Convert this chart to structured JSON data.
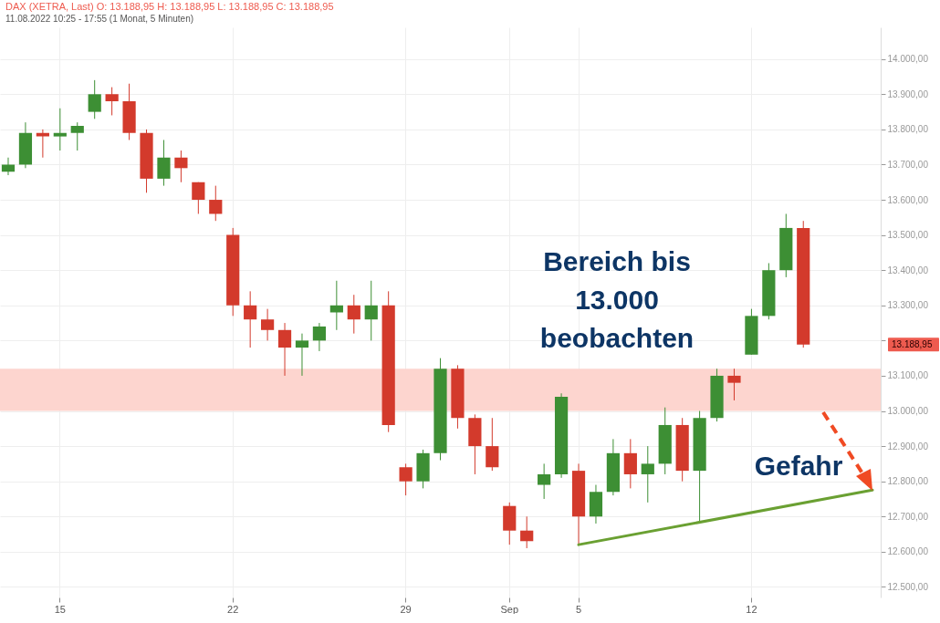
{
  "chart_data": {
    "type": "candlestick",
    "title": "DAX (XETRA, Last)  O: 13.188,95  H: 13.188,95  L: 13.188,95  C: 13.188,95",
    "subtitle": "11.08.2022 10:25 - 17:55  (1 Monat, 5 Minuten)",
    "categories": [
      null,
      null,
      null,
      "15",
      null,
      null,
      null,
      null,
      null,
      null,
      null,
      null,
      null,
      "22",
      null,
      null,
      null,
      null,
      null,
      null,
      null,
      null,
      null,
      "29",
      null,
      null,
      null,
      null,
      null,
      "Sep",
      null,
      null,
      null,
      "5",
      null,
      null,
      null,
      null,
      null,
      null,
      null,
      null,
      null,
      "12",
      null,
      null,
      null,
      null,
      null,
      null,
      null
    ],
    "ohlc": [
      [
        13680,
        13720,
        13670,
        13700
      ],
      [
        13700,
        13820,
        13690,
        13790
      ],
      [
        13790,
        13800,
        13720,
        13780
      ],
      [
        13780,
        13860,
        13740,
        13790
      ],
      [
        13790,
        13820,
        13740,
        13810
      ],
      [
        13850,
        13940,
        13830,
        13900
      ],
      [
        13900,
        13920,
        13840,
        13880
      ],
      [
        13880,
        13930,
        13770,
        13790
      ],
      [
        13790,
        13800,
        13620,
        13660
      ],
      [
        13660,
        13770,
        13640,
        13720
      ],
      [
        13720,
        13740,
        13650,
        13690
      ],
      [
        13650,
        13650,
        13560,
        13600
      ],
      [
        13600,
        13640,
        13540,
        13560
      ],
      [
        13500,
        13520,
        13270,
        13300
      ],
      [
        13300,
        13340,
        13180,
        13260
      ],
      [
        13260,
        13290,
        13200,
        13230
      ],
      [
        13230,
        13250,
        13100,
        13180
      ],
      [
        13180,
        13220,
        13100,
        13200
      ],
      [
        13200,
        13250,
        13170,
        13240
      ],
      [
        13280,
        13370,
        13230,
        13300
      ],
      [
        13300,
        13330,
        13220,
        13260
      ],
      [
        13260,
        13370,
        13200,
        13300
      ],
      [
        13300,
        13340,
        12940,
        12960
      ],
      [
        12840,
        12850,
        12760,
        12800
      ],
      [
        12800,
        12890,
        12780,
        12880
      ],
      [
        12880,
        13150,
        12860,
        13120
      ],
      [
        13120,
        13130,
        12950,
        12980
      ],
      [
        12980,
        12990,
        12820,
        12900
      ],
      [
        12900,
        12980,
        12830,
        12840
      ],
      [
        12730,
        12740,
        12620,
        12660
      ],
      [
        12660,
        12700,
        12610,
        12630
      ],
      [
        12790,
        12850,
        12750,
        12820
      ],
      [
        12820,
        13050,
        12810,
        13040
      ],
      [
        12830,
        12850,
        12620,
        12700
      ],
      [
        12700,
        12790,
        12680,
        12770
      ],
      [
        12770,
        12920,
        12760,
        12880
      ],
      [
        12880,
        12920,
        12780,
        12820
      ],
      [
        12820,
        12900,
        12740,
        12850
      ],
      [
        12850,
        13010,
        12820,
        12960
      ],
      [
        12960,
        12980,
        12800,
        12830
      ],
      [
        12830,
        13000,
        12680,
        12980
      ],
      [
        12980,
        13120,
        12970,
        13100
      ],
      [
        13100,
        13120,
        13030,
        13080
      ],
      [
        13160,
        13290,
        13160,
        13270
      ],
      [
        13270,
        13420,
        13260,
        13400
      ],
      [
        13400,
        13560,
        13380,
        13520
      ],
      [
        13520,
        13540,
        13180,
        13188.95
      ],
      null,
      null,
      null,
      null
    ],
    "series": [
      {
        "type": "line",
        "color": "#6aa032",
        "values": [
          null,
          null,
          null,
          null,
          null,
          null,
          null,
          null,
          null,
          null,
          null,
          null,
          null,
          null,
          null,
          null,
          null,
          null,
          null,
          null,
          null,
          null,
          null,
          null,
          null,
          null,
          null,
          null,
          null,
          null,
          null,
          null,
          null,
          12620,
          null,
          null,
          null,
          null,
          null,
          null,
          null,
          null,
          null,
          null,
          null,
          null,
          null,
          null,
          null,
          null,
          12775
        ]
      }
    ],
    "bands": [
      {
        "axis": "y",
        "from": 13000,
        "to": 13120,
        "color": "#fdd5cf"
      }
    ],
    "ylim": [
      12470,
      14090
    ],
    "yticks": [
      {
        "value": 12500,
        "label": "12.500,00"
      },
      {
        "value": 12600,
        "label": "12.600,00"
      },
      {
        "value": 12700,
        "label": "12.700,00"
      },
      {
        "value": 12800,
        "label": "12.800,00"
      },
      {
        "value": 12900,
        "label": "12.900,00"
      },
      {
        "value": 13000,
        "label": "13.000,00"
      },
      {
        "value": 13100,
        "label": "13.100,00"
      },
      {
        "value": 13200,
        "label": null
      },
      {
        "value": 13300,
        "label": "13.300,00"
      },
      {
        "value": 13400,
        "label": "13.400,00"
      },
      {
        "value": 13500,
        "label": "13.500,00"
      },
      {
        "value": 13600,
        "label": "13.600,00"
      },
      {
        "value": 13700,
        "label": "13.700,00"
      },
      {
        "value": 13800,
        "label": "13.800,00"
      },
      {
        "value": 13900,
        "label": "13.900,00"
      },
      {
        "value": 14000,
        "label": "14.000,00"
      }
    ],
    "grid": true,
    "annotations": [
      {
        "text": "Bereich bis\n13.000\nbeobachten"
      },
      {
        "text": "Gefahr"
      },
      "13.188,95"
    ]
  }
}
